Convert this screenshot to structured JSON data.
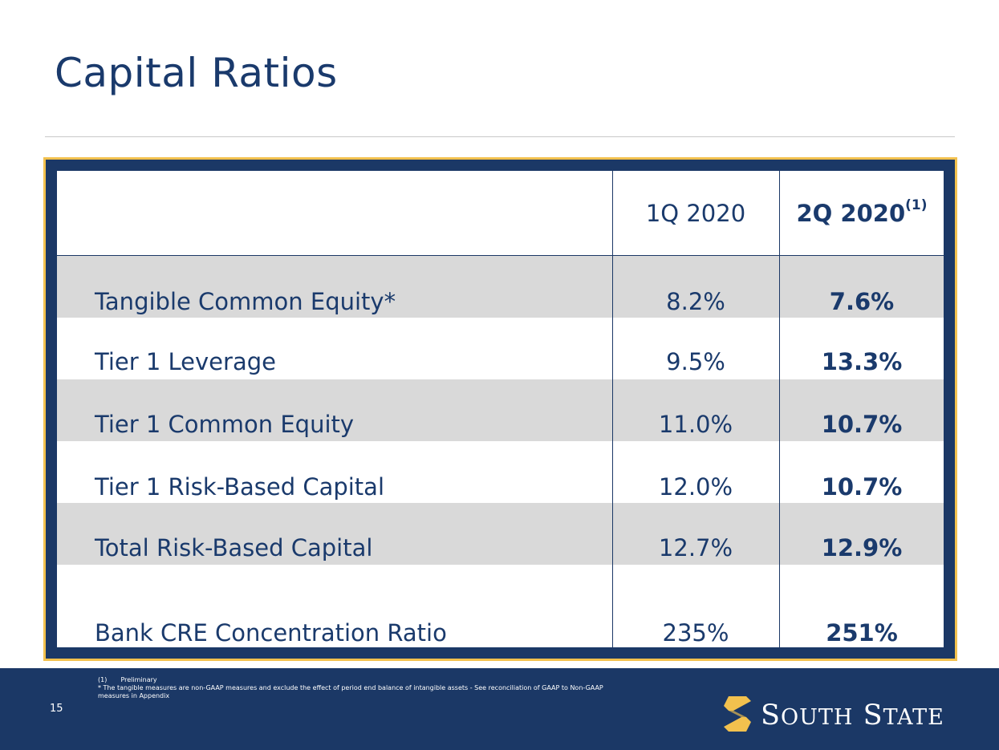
{
  "slide": {
    "title": "Capital Ratios",
    "page_number": "15"
  },
  "table": {
    "columns": [
      {
        "label": "1Q 2020",
        "sup": ""
      },
      {
        "label": "2Q 2020",
        "sup": "(1)"
      }
    ],
    "rows": [
      {
        "label": "Tangible Common Equity*",
        "q1": "8.2%",
        "q2": "7.6%"
      },
      {
        "label": "Tier 1 Leverage",
        "q1": "9.5%",
        "q2": "13.3%"
      },
      {
        "label": "Tier 1 Common Equity",
        "q1": "11.0%",
        "q2": "10.7%"
      },
      {
        "label": "Tier 1 Risk-Based Capital",
        "q1": "12.0%",
        "q2": "10.7%"
      },
      {
        "label": "Total Risk-Based Capital",
        "q1": "12.7%",
        "q2": "12.9%"
      },
      {
        "label": "Bank CRE Concentration Ratio",
        "q1": "235%",
        "q2": "251%"
      }
    ]
  },
  "footnotes": {
    "note1_marker": "(1)",
    "note1_text": "Preliminary",
    "note2_line1": "* The tangible measures are non-GAAP measures and exclude the effect of period end balance of intangible assets - See reconciliation of GAAP to Non-GAAP",
    "note2_line2": "measures in Appendix"
  },
  "logo": {
    "word1_cap": "S",
    "word1_rest": "OUTH",
    "word2_cap": "S",
    "word2_rest": "TATE"
  },
  "colors": {
    "navy": "#1b3866",
    "gold": "#f2c14e",
    "band_gray": "#d9d9d9",
    "text_navy": "#1a3a6c"
  }
}
